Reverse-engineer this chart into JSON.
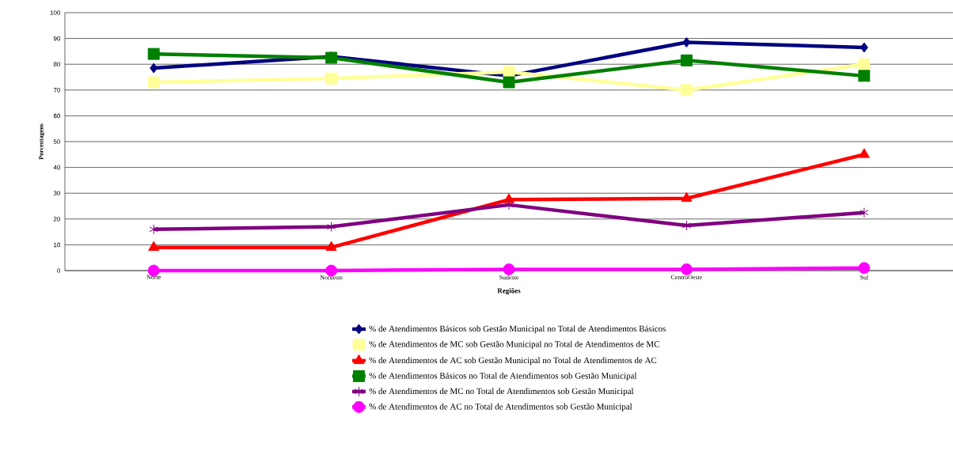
{
  "chart_data": {
    "type": "line",
    "xlabel": "Regiões",
    "ylabel": "Porcentagens",
    "categories": [
      "Norte",
      "Nordeste",
      "Sudeste",
      "CentroOeste",
      "Sul"
    ],
    "series": [
      {
        "name": "% de Atendimentos Básicos sob Gestão Municipal no Total de Atendimentos Básicos",
        "color": "#000080",
        "marker": "diamond",
        "values": [
          78.5,
          83,
          75.5,
          88.5,
          86.5
        ]
      },
      {
        "name": "% de Atendimentos de MC sob Gestão Municipal no Total de Atendimentos de MC",
        "color": "#ffff99",
        "marker": "square",
        "values": [
          73,
          74.5,
          77,
          70,
          80
        ]
      },
      {
        "name": "% de Atendimentos de AC sob Gestão Municipal no Total de Atendimentos de AC",
        "color": "#ff0000",
        "marker": "triangle",
        "values": [
          9,
          9,
          27.5,
          28,
          45
        ]
      },
      {
        "name": "% de Atendimentos Básicos no Total de Atendimentos sob Gestão Municipal",
        "color": "#008000",
        "marker": "square",
        "values": [
          84,
          82.5,
          73,
          81.5,
          75.5
        ]
      },
      {
        "name": "% de Atendimentos de MC no Total de Atendimentos sob Gestão Municipal",
        "color": "#800080",
        "marker": "cross",
        "values": [
          16,
          17,
          25.5,
          17.5,
          22.5
        ]
      },
      {
        "name": "% de Atendimentos de AC no Total de Atendimentos sob Gestão Municipal",
        "color": "#ff00ff",
        "marker": "circle",
        "values": [
          0,
          0,
          0.5,
          0.5,
          1
        ]
      }
    ],
    "ylim": [
      0,
      100
    ],
    "yticks": [
      0,
      10,
      20,
      30,
      40,
      50,
      60,
      70,
      80,
      90,
      100
    ],
    "grid": "y",
    "legend": "bottom",
    "line_style": "solid"
  }
}
